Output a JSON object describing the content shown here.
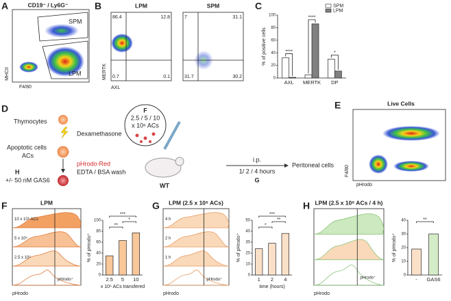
{
  "panels": {
    "A": {
      "letter": "A",
      "title": "CD19⁻ / Ly6G⁻",
      "gates": [
        "SPM",
        "LPM"
      ],
      "x_label": "F4/80",
      "y_label": "MHCII"
    },
    "B": {
      "letter": "B",
      "x_label": "AXL",
      "y_label": "MERTK",
      "plots": [
        {
          "title": "LPM",
          "quadrants": [
            86.4,
            12.8,
            0.7,
            0.1
          ]
        },
        {
          "title": "SPM",
          "quadrants": [
            7,
            31.1,
            31.7,
            30.2
          ]
        }
      ]
    },
    "C": {
      "letter": "C",
      "chart": {
        "type": "bar",
        "categories": [
          "AXL",
          "MERTK",
          "DP"
        ],
        "series": [
          {
            "name": "SPM",
            "color": "#ffffff",
            "values": [
              32,
              5,
              30
            ]
          },
          {
            "name": "LPM",
            "color": "#808080",
            "values": [
              1,
              86,
              11
            ]
          }
        ],
        "ylim": [
          0,
          100
        ],
        "yticks": [
          0,
          20,
          40,
          60,
          80,
          100
        ],
        "y_label": "% of positive cells",
        "significance": [
          "****",
          "****",
          "*"
        ]
      }
    },
    "D": {
      "letter": "D",
      "thymocytes": "Thymocytes",
      "dexamethasone": "Dexamethasone",
      "apoptotic": "Apoptotic cells",
      "acs": "ACs",
      "phrodo_red": "pHrodo-Red",
      "wash": "EDTA / BSA wash",
      "h_letter": "H",
      "gas6": "+/- 50 nM GAS6",
      "f_letter": "F",
      "doses": "2.5 / 5 / 10",
      "dose_unit": "x 10⁶ ACs",
      "mouse": "WT",
      "route": "i.p.",
      "times": "1/ 2 / 4 hours",
      "g_letter": "G",
      "outcome": "Peritoneal cells"
    },
    "E": {
      "letter": "E",
      "title": "Live Cells",
      "x_label": "pHrodo",
      "y_label": "F4/80"
    },
    "F": {
      "letter": "F",
      "histogram": {
        "title": "LPM",
        "labels": [
          "10 x 10⁶ ACs",
          "5 x 10⁶",
          "2.5 x 10⁶"
        ],
        "gate": "pHrodo⁺",
        "x_label": "pHrodo"
      },
      "chart": {
        "type": "bar",
        "categories": [
          "2.5",
          "5",
          "10"
        ],
        "values": [
          35,
          63,
          77
        ],
        "color": "#f8c79a",
        "ylim": [
          0,
          100
        ],
        "yticks": [
          0,
          20,
          40,
          60,
          80,
          100
        ],
        "y_label": "% of pHrodo⁺",
        "x_label": "x 10⁶ ACs transfered",
        "significance": [
          "**",
          "***",
          "*"
        ]
      }
    },
    "G": {
      "letter": "G",
      "histogram": {
        "title": "LPM (2.5 x 10⁶ ACs)",
        "labels": [
          "4 h",
          "2 h",
          "1 h"
        ],
        "gate": "pHrodo⁺",
        "x_label": "pHrodo"
      },
      "chart": {
        "type": "bar",
        "categories": [
          "1",
          "2",
          "4"
        ],
        "values": [
          24,
          29,
          38
        ],
        "color": "#fbe0c8",
        "ylim": [
          0,
          50
        ],
        "yticks": [
          0,
          10,
          20,
          30,
          40,
          50
        ],
        "y_label": "% of pHrodo⁺",
        "x_label": "time (hours)",
        "significance": [
          "*",
          "***",
          "**"
        ]
      }
    },
    "H": {
      "letter": "H",
      "histogram": {
        "title": "LPM (2.5 x 10⁶ ACs / 4 h)",
        "gate": "pHrodo⁺",
        "x_label": "pHrodo"
      },
      "chart": {
        "type": "bar",
        "categories": [
          "-",
          "GAS6"
        ],
        "values": [
          19,
          30
        ],
        "colors": [
          "#fbe0c8",
          "#d5ecc8"
        ],
        "ylim": [
          0,
          40
        ],
        "yticks": [
          0,
          10,
          20,
          30,
          40
        ],
        "y_label": "% of pHrodo⁺",
        "significance": [
          "**"
        ]
      }
    }
  }
}
